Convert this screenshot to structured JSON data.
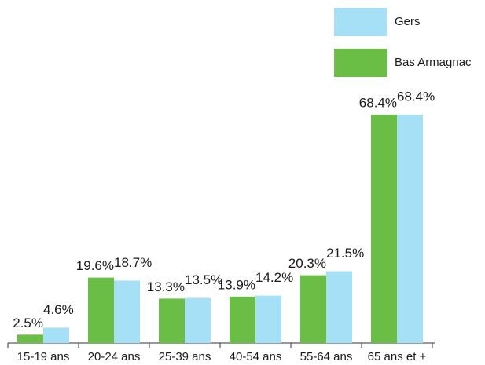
{
  "chart_data": {
    "type": "bar",
    "categories": [
      "15-19 ans",
      "20-24 ans",
      "25-39 ans",
      "40-54 ans",
      "55-64 ans",
      "65 ans et +"
    ],
    "series": [
      {
        "name": "Bas Armagnac",
        "color": "#6abd45",
        "label_color": "#1a1a1a",
        "values": [
          2.5,
          19.6,
          13.3,
          13.9,
          20.3,
          68.4
        ],
        "value_labels": [
          "2.5%",
          "19.6%",
          "13.3%",
          "13.9%",
          "20.3%",
          "68.4%"
        ]
      },
      {
        "name": "Gers",
        "color": "#a6e0f6",
        "label_color": "#2bb5c8",
        "values": [
          4.6,
          18.7,
          13.5,
          14.2,
          21.5,
          68.4
        ],
        "value_labels": [
          "4.6%",
          "18.7%",
          "13.5%",
          "14.2%",
          "21.5%",
          "68.4%"
        ]
      }
    ]
  }
}
